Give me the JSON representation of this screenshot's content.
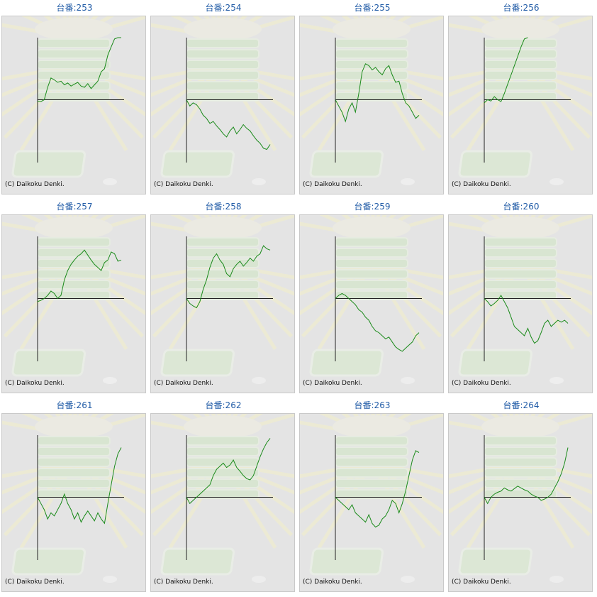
{
  "title_prefix": "台番:",
  "copyright": "(C) Daikoku Denki.",
  "colors": {
    "line": "#1a8a1a",
    "axis": "#222222",
    "panel_bg": "#e4e4e4",
    "title": "#1f5aa6"
  },
  "chart_data": [
    {
      "type": "line",
      "machine": "253",
      "title": "台番:253",
      "ylim": [
        -100,
        100
      ],
      "xlim": [
        0,
        100
      ],
      "x": [
        0,
        4,
        8,
        12,
        16,
        20,
        24,
        28,
        32,
        36,
        40,
        44,
        48,
        52,
        56,
        60,
        64,
        68,
        72,
        76,
        80,
        84,
        88,
        92,
        96,
        100
      ],
      "y": [
        -2,
        -3,
        0,
        20,
        35,
        32,
        28,
        30,
        24,
        27,
        22,
        25,
        28,
        22,
        20,
        26,
        18,
        24,
        30,
        45,
        50,
        72,
        85,
        98,
        100,
        100
      ]
    },
    {
      "type": "line",
      "machine": "254",
      "title": "台番:254",
      "ylim": [
        -100,
        100
      ],
      "xlim": [
        0,
        100
      ],
      "x": [
        0,
        4,
        8,
        12,
        16,
        20,
        24,
        28,
        32,
        36,
        40,
        44,
        48,
        52,
        56,
        60,
        64,
        68,
        72,
        76,
        80,
        84,
        88,
        92,
        96,
        100
      ],
      "y": [
        0,
        -10,
        -5,
        -8,
        -15,
        -25,
        -30,
        -38,
        -35,
        -42,
        -48,
        -55,
        -60,
        -50,
        -44,
        -55,
        -48,
        -40,
        -46,
        -50,
        -58,
        -65,
        -70,
        -78,
        -80,
        -72
      ]
    },
    {
      "type": "line",
      "machine": "255",
      "title": "台番:255",
      "ylim": [
        -100,
        100
      ],
      "xlim": [
        0,
        100
      ],
      "x": [
        0,
        4,
        8,
        12,
        16,
        20,
        24,
        28,
        32,
        36,
        40,
        44,
        48,
        52,
        56,
        60,
        64,
        68,
        72,
        76,
        80,
        84,
        88,
        92,
        96,
        100
      ],
      "y": [
        0,
        -10,
        -20,
        -35,
        -15,
        -5,
        -20,
        10,
        45,
        58,
        55,
        48,
        52,
        45,
        40,
        50,
        55,
        40,
        28,
        30,
        10,
        -5,
        -10,
        -20,
        -30,
        -25
      ]
    },
    {
      "type": "line",
      "machine": "256",
      "title": "台番:256",
      "ylim": [
        -100,
        100
      ],
      "xlim": [
        0,
        100
      ],
      "x": [
        0,
        4,
        8,
        12,
        16,
        20,
        24,
        28,
        32,
        36,
        40,
        44,
        48,
        52
      ],
      "y": [
        -5,
        0,
        -2,
        5,
        0,
        -3,
        10,
        25,
        40,
        55,
        70,
        85,
        98,
        100
      ]
    },
    {
      "type": "line",
      "machine": "257",
      "title": "台番:257",
      "ylim": [
        -100,
        100
      ],
      "xlim": [
        0,
        100
      ],
      "x": [
        0,
        4,
        8,
        12,
        16,
        20,
        24,
        28,
        32,
        36,
        40,
        44,
        48,
        52,
        56,
        60,
        64,
        68,
        72,
        76,
        80,
        84,
        88,
        92,
        96,
        100
      ],
      "y": [
        -5,
        -3,
        0,
        5,
        12,
        8,
        0,
        5,
        30,
        45,
        55,
        62,
        68,
        72,
        78,
        70,
        62,
        55,
        50,
        45,
        58,
        62,
        75,
        72,
        60,
        62
      ]
    },
    {
      "type": "line",
      "machine": "258",
      "title": "台番:258",
      "ylim": [
        -100,
        100
      ],
      "xlim": [
        0,
        100
      ],
      "x": [
        0,
        4,
        8,
        12,
        16,
        20,
        24,
        28,
        32,
        36,
        40,
        44,
        48,
        52,
        56,
        60,
        64,
        68,
        72,
        76,
        80,
        84,
        88,
        92,
        96,
        100
      ],
      "y": [
        0,
        -8,
        -12,
        -15,
        -5,
        15,
        30,
        50,
        65,
        72,
        62,
        55,
        40,
        35,
        48,
        55,
        60,
        52,
        58,
        65,
        60,
        68,
        72,
        85,
        80,
        78
      ]
    },
    {
      "type": "line",
      "machine": "259",
      "title": "台番:259",
      "ylim": [
        -100,
        100
      ],
      "xlim": [
        0,
        100
      ],
      "x": [
        0,
        4,
        8,
        12,
        16,
        20,
        24,
        28,
        32,
        36,
        40,
        44,
        48,
        52,
        56,
        60,
        64,
        68,
        72,
        76,
        80,
        84,
        88,
        92,
        96,
        100
      ],
      "y": [
        0,
        5,
        8,
        5,
        0,
        -5,
        -10,
        -18,
        -22,
        -30,
        -35,
        -45,
        -52,
        -55,
        -60,
        -65,
        -62,
        -70,
        -78,
        -82,
        -85,
        -80,
        -75,
        -70,
        -60,
        -55
      ]
    },
    {
      "type": "line",
      "machine": "260",
      "title": "台番:260",
      "ylim": [
        -100,
        100
      ],
      "xlim": [
        0,
        100
      ],
      "x": [
        0,
        4,
        8,
        12,
        16,
        20,
        24,
        28,
        32,
        36,
        40,
        44,
        48,
        52,
        56,
        60,
        64,
        68,
        72,
        76,
        80,
        84,
        88,
        92,
        96,
        100
      ],
      "y": [
        0,
        -5,
        -12,
        -8,
        -3,
        5,
        -5,
        -15,
        -30,
        -45,
        -50,
        -55,
        -60,
        -48,
        -62,
        -72,
        -68,
        -55,
        -40,
        -35,
        -45,
        -40,
        -35,
        -38,
        -35,
        -40
      ]
    },
    {
      "type": "line",
      "machine": "261",
      "title": "台番:261",
      "ylim": [
        -100,
        100
      ],
      "xlim": [
        0,
        100
      ],
      "x": [
        0,
        4,
        8,
        12,
        16,
        20,
        24,
        28,
        32,
        36,
        40,
        44,
        48,
        52,
        56,
        60,
        64,
        68,
        72,
        76,
        80,
        84,
        88,
        92,
        96,
        100
      ],
      "y": [
        0,
        -10,
        -20,
        -35,
        -25,
        -30,
        -20,
        -10,
        5,
        -10,
        -20,
        -35,
        -25,
        -40,
        -30,
        -22,
        -30,
        -38,
        -25,
        -35,
        -42,
        -10,
        20,
        50,
        70,
        80
      ]
    },
    {
      "type": "line",
      "machine": "262",
      "title": "台番:262",
      "ylim": [
        -100,
        100
      ],
      "xlim": [
        0,
        100
      ],
      "x": [
        0,
        4,
        8,
        12,
        16,
        20,
        24,
        28,
        32,
        36,
        40,
        44,
        48,
        52,
        56,
        60,
        64,
        68,
        72,
        76,
        80,
        84,
        88,
        92,
        96,
        100
      ],
      "y": [
        0,
        -10,
        -5,
        0,
        5,
        10,
        15,
        20,
        35,
        45,
        50,
        55,
        48,
        52,
        60,
        48,
        42,
        35,
        30,
        28,
        35,
        50,
        65,
        78,
        88,
        95
      ]
    },
    {
      "type": "line",
      "machine": "263",
      "title": "台番:263",
      "ylim": [
        -100,
        100
      ],
      "xlim": [
        0,
        100
      ],
      "x": [
        0,
        4,
        8,
        12,
        16,
        20,
        24,
        28,
        32,
        36,
        40,
        44,
        48,
        52,
        56,
        60,
        64,
        68,
        72,
        76,
        80,
        84,
        88,
        92,
        96,
        100
      ],
      "y": [
        0,
        -5,
        -10,
        -15,
        -20,
        -12,
        -25,
        -30,
        -35,
        -40,
        -28,
        -42,
        -48,
        -45,
        -35,
        -30,
        -20,
        -5,
        -10,
        -25,
        -10,
        10,
        35,
        60,
        75,
        72
      ]
    },
    {
      "type": "line",
      "machine": "264",
      "title": "台番:264",
      "ylim": [
        -100,
        100
      ],
      "xlim": [
        0,
        100
      ],
      "x": [
        0,
        4,
        8,
        12,
        16,
        20,
        24,
        28,
        32,
        36,
        40,
        44,
        48,
        52,
        56,
        60,
        64,
        68,
        72,
        76,
        80,
        84,
        88,
        92,
        96,
        100
      ],
      "y": [
        0,
        -10,
        0,
        5,
        8,
        10,
        15,
        12,
        10,
        14,
        18,
        15,
        12,
        10,
        5,
        2,
        0,
        -5,
        -3,
        0,
        5,
        15,
        25,
        38,
        55,
        80
      ]
    }
  ]
}
